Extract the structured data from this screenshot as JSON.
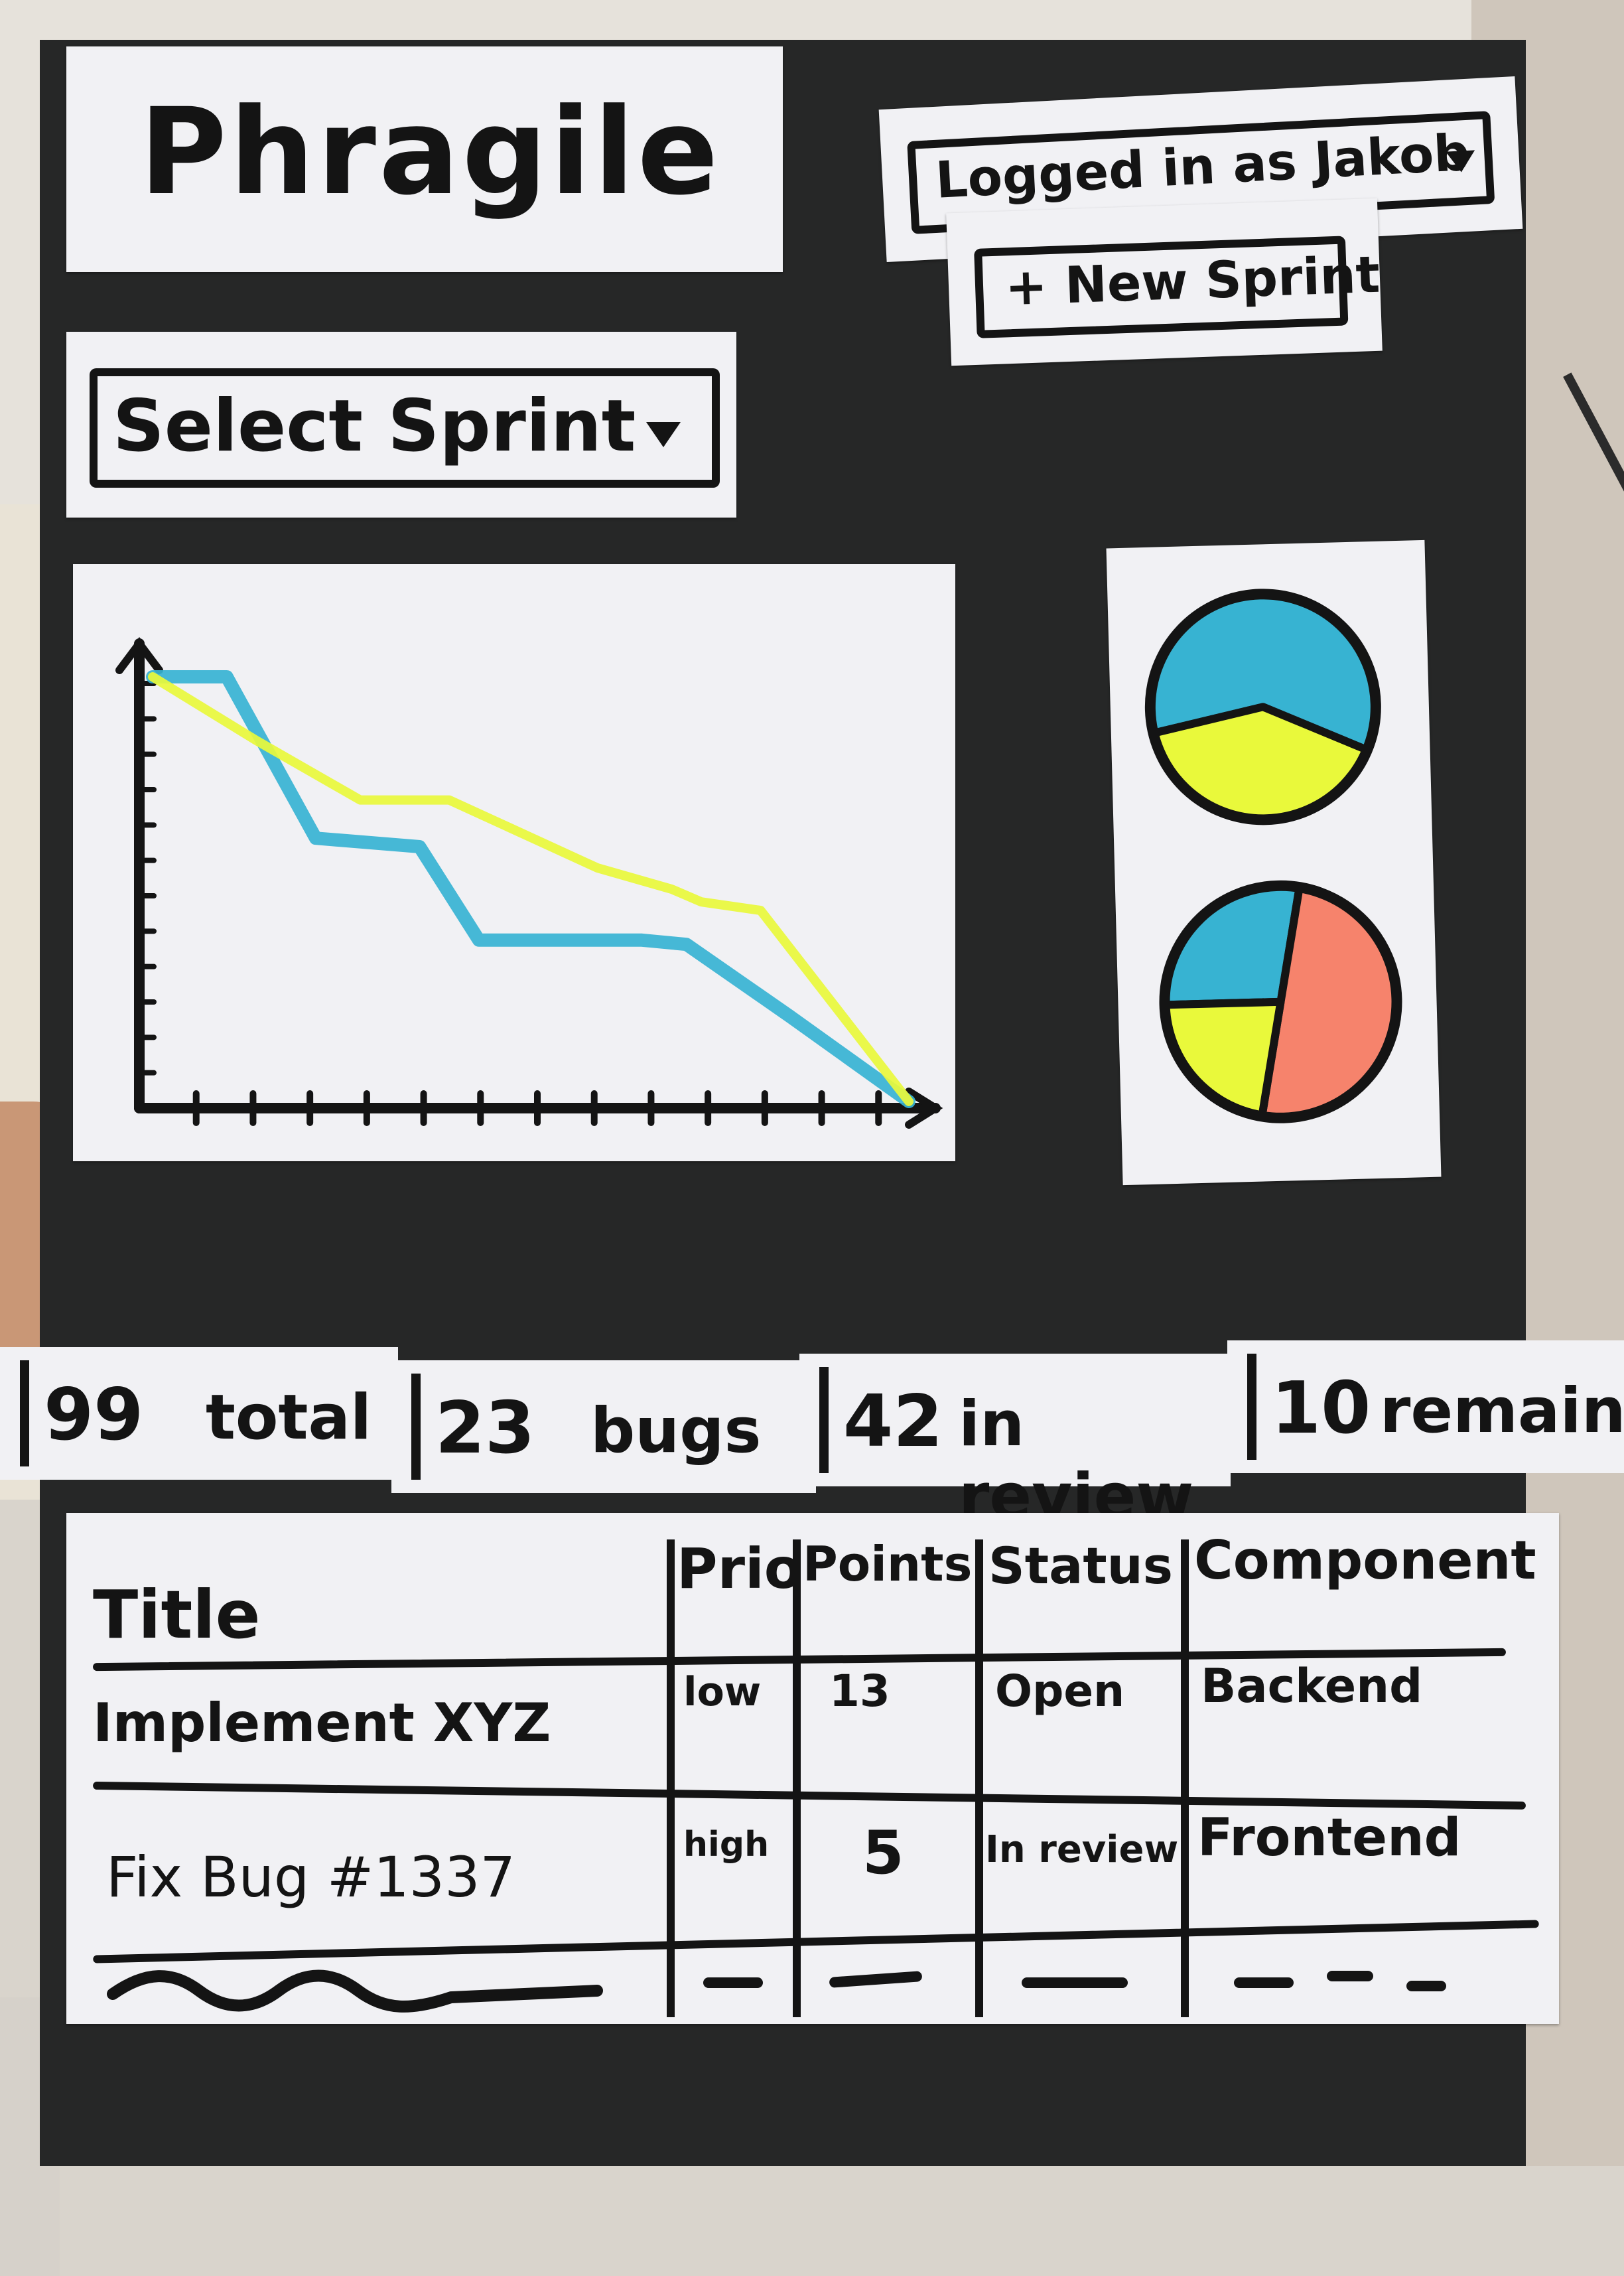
{
  "header": {
    "app_title": "Phragile",
    "login_label": "Logged in as Jakob",
    "new_sprint_label": "+ New Sprint",
    "select_sprint_label": "Select Sprint"
  },
  "icons": {
    "dropdown": "caret-down-icon"
  },
  "colors": {
    "board": "#262727",
    "paper": "#f1f1f4",
    "ink": "#141414",
    "series_blue": "#37b3d2",
    "series_yellow": "#e9f93b",
    "pie_salmon": "#f6836c"
  },
  "chart_data": [
    {
      "type": "line",
      "series": [
        {
          "color": "#37b3d2",
          "points": [
            [
              0,
              100
            ],
            [
              5,
              100
            ],
            [
              11,
              62
            ],
            [
              18,
              60
            ],
            [
              22,
              38
            ],
            [
              33,
              38
            ],
            [
              36,
              37
            ],
            [
              43,
              20
            ],
            [
              51,
              0
            ]
          ]
        },
        {
          "color": "#e9f93b",
          "points": [
            [
              0,
              100
            ],
            [
              7,
              85
            ],
            [
              14,
              71
            ],
            [
              20,
              71
            ],
            [
              30,
              55
            ],
            [
              35,
              50
            ],
            [
              37,
              47
            ],
            [
              41,
              45
            ],
            [
              51,
              0
            ]
          ]
        }
      ],
      "grid": false
    },
    {
      "type": "pie",
      "slices": [
        {
          "color": "#37b3d2",
          "value": 60
        },
        {
          "color": "#e9f93b",
          "value": 40
        }
      ]
    },
    {
      "type": "pie",
      "slices": [
        {
          "color": "#37b3d2",
          "value": 28
        },
        {
          "color": "#f6836c",
          "value": 50
        },
        {
          "color": "#e9f93b",
          "value": 22
        }
      ]
    }
  ],
  "stats": [
    {
      "value": "99",
      "label": "total"
    },
    {
      "value": "23",
      "label": "bugs"
    },
    {
      "value": "42",
      "label": "in review"
    },
    {
      "value": "10",
      "label": "remainin"
    }
  ],
  "table": {
    "columns": [
      "Title",
      "Prio",
      "Points",
      "Status",
      "Component"
    ],
    "rows": [
      {
        "title": "Implement XYZ",
        "prio": "low",
        "points": "13",
        "status": "Open",
        "component": "Backend"
      },
      {
        "title": "Fix Bug #1337",
        "prio": "high",
        "points": "5",
        "status": "In review",
        "component": "Frontend"
      }
    ]
  }
}
